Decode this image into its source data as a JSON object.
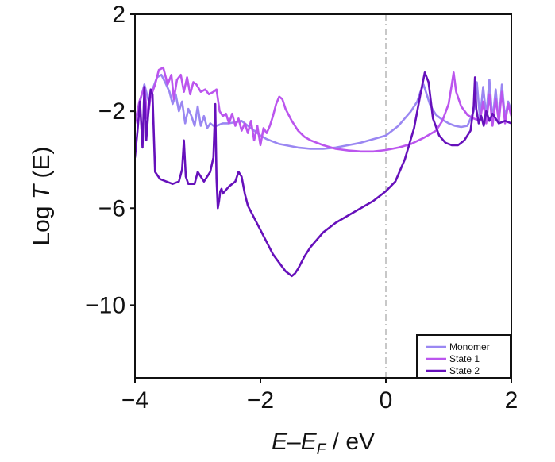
{
  "chart_data": {
    "type": "line",
    "title": "",
    "xlabel": "E–E_F / eV",
    "xlabel_parts": {
      "e": "E",
      "dash": "–",
      "ef": "E",
      "f_sub": "F",
      "unit": " / eV"
    },
    "ylabel": "Log T (E)",
    "ylabel_parts": {
      "log": "Log ",
      "t": "T",
      "e": " (E)"
    },
    "xlim": [
      -4,
      2
    ],
    "ylim": [
      -13,
      2
    ],
    "xticks": [
      -4,
      -2,
      0,
      2
    ],
    "xtick_labels": [
      "−4",
      "−2",
      "0",
      "2"
    ],
    "yticks": [
      2,
      -2,
      -6,
      -10
    ],
    "ytick_labels": [
      "2",
      "−2",
      "−6",
      "−10"
    ],
    "reference_line": {
      "x": 0,
      "style": "dash-dot",
      "color": "#aaaaaa"
    },
    "grid": false,
    "legend_position": "lower-right",
    "series": [
      {
        "name": "Monomer",
        "color": "#9a87f2",
        "x": [
          -4.0,
          -3.93,
          -3.85,
          -3.78,
          -3.72,
          -3.65,
          -3.58,
          -3.52,
          -3.45,
          -3.4,
          -3.35,
          -3.3,
          -3.25,
          -3.2,
          -3.15,
          -3.1,
          -3.05,
          -3.0,
          -2.95,
          -2.9,
          -2.85,
          -2.8,
          -2.75,
          -2.7,
          -2.6,
          -2.5,
          -2.4,
          -2.3,
          -2.2,
          -2.1,
          -2.0,
          -1.9,
          -1.8,
          -1.7,
          -1.6,
          -1.5,
          -1.4,
          -1.2,
          -1.0,
          -0.8,
          -0.6,
          -0.4,
          -0.2,
          0.0,
          0.1,
          0.2,
          0.3,
          0.4,
          0.5,
          0.55,
          0.6,
          0.65,
          0.7,
          0.75,
          0.8,
          0.9,
          1.0,
          1.1,
          1.2,
          1.3,
          1.4,
          1.45,
          1.5,
          1.55,
          1.6,
          1.65,
          1.7,
          1.75,
          1.8,
          1.85,
          1.9,
          1.95,
          2.0
        ],
        "y": [
          -2.4,
          -1.7,
          -0.9,
          -1.6,
          -1.1,
          -0.6,
          -0.5,
          -0.8,
          -1.2,
          -1.7,
          -1.3,
          -2.0,
          -1.6,
          -2.5,
          -1.9,
          -2.2,
          -2.6,
          -1.8,
          -2.6,
          -2.2,
          -2.7,
          -2.5,
          -2.6,
          -2.6,
          -2.5,
          -2.5,
          -2.45,
          -2.4,
          -2.6,
          -2.8,
          -3.0,
          -3.15,
          -3.25,
          -3.35,
          -3.4,
          -3.45,
          -3.5,
          -3.55,
          -3.55,
          -3.5,
          -3.4,
          -3.3,
          -3.15,
          -3.0,
          -2.8,
          -2.6,
          -2.3,
          -2.0,
          -1.6,
          -1.2,
          -0.9,
          -1.3,
          -1.7,
          -1.95,
          -2.15,
          -2.35,
          -2.5,
          -2.6,
          -2.65,
          -2.6,
          -2.0,
          -0.8,
          -2.3,
          -1.0,
          -2.2,
          -0.7,
          -2.4,
          -1.1,
          -2.5,
          -0.9,
          -2.3,
          -1.6,
          -2.0
        ]
      },
      {
        "name": "State 1",
        "color": "#bb55ee",
        "x": [
          -4.0,
          -3.93,
          -3.85,
          -3.8,
          -3.75,
          -3.68,
          -3.62,
          -3.55,
          -3.48,
          -3.42,
          -3.38,
          -3.33,
          -3.27,
          -3.22,
          -3.17,
          -3.12,
          -3.07,
          -3.02,
          -2.95,
          -2.88,
          -2.82,
          -2.75,
          -2.7,
          -2.65,
          -2.6,
          -2.55,
          -2.5,
          -2.45,
          -2.4,
          -2.35,
          -2.3,
          -2.25,
          -2.2,
          -2.15,
          -2.1,
          -2.05,
          -2.0,
          -1.95,
          -1.9,
          -1.85,
          -1.8,
          -1.75,
          -1.7,
          -1.65,
          -1.6,
          -1.5,
          -1.4,
          -1.3,
          -1.2,
          -1.0,
          -0.8,
          -0.6,
          -0.4,
          -0.2,
          0.0,
          0.2,
          0.4,
          0.6,
          0.8,
          0.9,
          1.0,
          1.05,
          1.08,
          1.12,
          1.2,
          1.3,
          1.4,
          1.5,
          1.55,
          1.6,
          1.65,
          1.7,
          1.75,
          1.8,
          1.85,
          1.9,
          1.95,
          2.0
        ],
        "y": [
          -2.5,
          -1.6,
          -1.0,
          -2.3,
          -1.4,
          -0.9,
          -0.3,
          -0.2,
          -0.9,
          -0.5,
          -1.5,
          -0.7,
          -0.5,
          -1.2,
          -0.6,
          -1.3,
          -0.8,
          -0.9,
          -1.2,
          -1.1,
          -1.3,
          -1.2,
          -1.1,
          -2.0,
          -2.2,
          -2.1,
          -2.5,
          -2.1,
          -2.6,
          -2.3,
          -2.8,
          -2.5,
          -2.9,
          -2.4,
          -3.2,
          -2.6,
          -3.4,
          -2.7,
          -2.9,
          -2.6,
          -2.2,
          -1.7,
          -1.4,
          -1.5,
          -1.9,
          -2.4,
          -2.8,
          -3.05,
          -3.2,
          -3.4,
          -3.55,
          -3.62,
          -3.66,
          -3.66,
          -3.6,
          -3.5,
          -3.35,
          -3.1,
          -2.8,
          -2.4,
          -1.7,
          -0.9,
          -0.4,
          -1.2,
          -1.8,
          -2.15,
          -2.3,
          -2.4,
          -1.6,
          -2.5,
          -1.3,
          -2.6,
          -1.5,
          -2.4,
          -1.2,
          -2.5,
          -1.7,
          -2.2
        ]
      },
      {
        "name": "State 2",
        "color": "#6610bb",
        "x": [
          -4.0,
          -3.96,
          -3.92,
          -3.88,
          -3.85,
          -3.82,
          -3.78,
          -3.75,
          -3.72,
          -3.68,
          -3.6,
          -3.5,
          -3.4,
          -3.3,
          -3.25,
          -3.22,
          -3.19,
          -3.15,
          -3.05,
          -3.0,
          -2.9,
          -2.8,
          -2.75,
          -2.72,
          -2.7,
          -2.68,
          -2.66,
          -2.64,
          -2.62,
          -2.6,
          -2.5,
          -2.4,
          -2.35,
          -2.3,
          -2.25,
          -2.2,
          -2.0,
          -1.8,
          -1.6,
          -1.5,
          -1.45,
          -1.4,
          -1.3,
          -1.2,
          -1.0,
          -0.8,
          -0.6,
          -0.4,
          -0.2,
          0.0,
          0.15,
          0.3,
          0.45,
          0.55,
          0.62,
          0.68,
          0.75,
          0.85,
          0.95,
          1.05,
          1.15,
          1.25,
          1.35,
          1.4,
          1.42,
          1.44,
          1.48,
          1.52,
          1.56,
          1.6,
          1.65,
          1.7,
          1.8,
          1.9,
          2.0
        ],
        "y": [
          -3.9,
          -2.8,
          -1.6,
          -3.5,
          -1.0,
          -3.2,
          -1.8,
          -1.1,
          -1.3,
          -4.5,
          -4.8,
          -4.9,
          -5.0,
          -4.9,
          -4.4,
          -3.2,
          -4.7,
          -5.0,
          -5.0,
          -4.5,
          -4.9,
          -4.5,
          -3.9,
          -1.7,
          -4.8,
          -6.0,
          -5.7,
          -5.3,
          -5.2,
          -5.4,
          -5.1,
          -4.9,
          -4.5,
          -4.7,
          -5.4,
          -5.9,
          -6.9,
          -7.9,
          -8.6,
          -8.8,
          -8.7,
          -8.5,
          -8.0,
          -7.6,
          -7.0,
          -6.6,
          -6.3,
          -6.0,
          -5.7,
          -5.3,
          -4.9,
          -4.0,
          -2.7,
          -1.3,
          -0.4,
          -0.8,
          -2.3,
          -3.0,
          -3.3,
          -3.4,
          -3.4,
          -3.2,
          -2.8,
          -1.8,
          -0.6,
          -1.9,
          -2.5,
          -2.2,
          -2.6,
          -2.0,
          -2.4,
          -2.1,
          -2.5,
          -2.4,
          -2.5
        ]
      }
    ]
  }
}
